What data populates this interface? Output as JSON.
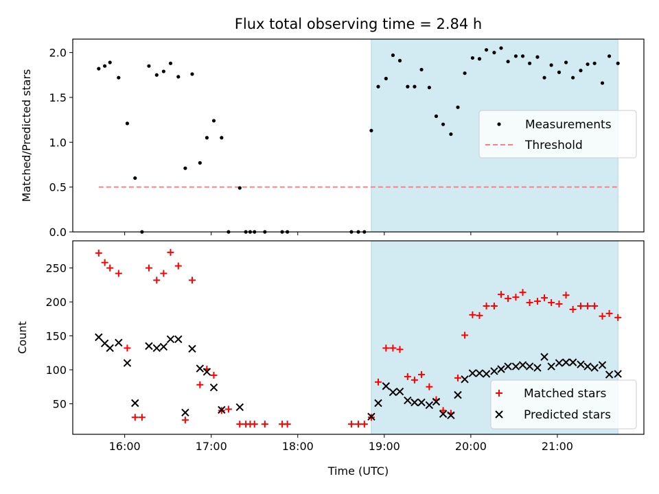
{
  "figure": {
    "title": "Flux total observing time = 2.84 h",
    "xlabel": "Time (UTC)",
    "x_ticks": [
      "16:00",
      "17:00",
      "18:00",
      "19:00",
      "20:00",
      "21:00"
    ],
    "x_tick_hours": [
      16,
      17,
      18,
      19,
      20,
      21
    ],
    "xlim_hours": [
      15.4,
      22.0
    ],
    "shaded_span_hours": [
      18.85,
      21.7
    ],
    "colors": {
      "shade": "#add8e6",
      "measurement": "#000000",
      "threshold": "#ff7f7f",
      "matched": "#ff0000",
      "predicted": "#000000"
    }
  },
  "chart_data": [
    {
      "type": "scatter",
      "ylabel": "Matched/Predicted stars",
      "ylim": [
        0,
        2.15
      ],
      "y_ticks": [
        "0.0",
        "0.5",
        "1.0",
        "1.5",
        "2.0"
      ],
      "y_tick_values": [
        0,
        0.5,
        1.0,
        1.5,
        2.0
      ],
      "legend_position": "center-right",
      "series": [
        {
          "name": "Measurements",
          "x": [
            15.7,
            15.77,
            15.83,
            15.93,
            16.03,
            16.12,
            16.2,
            16.28,
            16.37,
            16.45,
            16.53,
            16.62,
            16.7,
            16.78,
            16.87,
            16.95,
            17.03,
            17.12,
            17.2,
            17.33,
            17.4,
            17.45,
            17.5,
            17.62,
            17.82,
            17.88,
            18.62,
            18.7,
            18.77,
            18.85,
            18.93,
            19.02,
            19.1,
            19.18,
            19.27,
            19.35,
            19.43,
            19.52,
            19.6,
            19.68,
            19.77,
            19.85,
            19.93,
            20.02,
            20.1,
            20.18,
            20.27,
            20.35,
            20.43,
            20.52,
            20.6,
            20.68,
            20.77,
            20.85,
            20.93,
            21.02,
            21.1,
            21.18,
            21.27,
            21.35,
            21.43,
            21.52,
            21.6,
            21.7
          ],
          "y": [
            1.82,
            1.85,
            1.89,
            1.72,
            1.21,
            0.6,
            0.0,
            1.85,
            1.75,
            1.79,
            1.88,
            1.73,
            0.71,
            1.76,
            0.77,
            1.05,
            1.24,
            1.05,
            0.0,
            0.49,
            0.0,
            0.0,
            0.0,
            0.0,
            0.0,
            0.0,
            0.0,
            0.0,
            0.0,
            1.13,
            1.62,
            1.71,
            1.97,
            1.91,
            1.62,
            1.62,
            1.81,
            1.61,
            1.29,
            1.2,
            1.09,
            1.39,
            1.77,
            1.94,
            1.93,
            2.03,
            2.0,
            2.05,
            1.9,
            1.96,
            1.96,
            1.88,
            1.95,
            1.72,
            1.86,
            1.78,
            1.89,
            1.72,
            1.8,
            1.87,
            1.88,
            1.66,
            1.96,
            1.88
          ]
        },
        {
          "name": "Threshold",
          "x": [
            15.7,
            21.7
          ],
          "y": [
            0.5,
            0.5
          ]
        }
      ]
    },
    {
      "type": "scatter",
      "ylabel": "Count",
      "ylim": [
        5,
        290
      ],
      "y_ticks": [
        "50",
        "100",
        "150",
        "200",
        "250"
      ],
      "y_tick_values": [
        50,
        100,
        150,
        200,
        250
      ],
      "legend_position": "lower-right",
      "series": [
        {
          "name": "Matched stars",
          "x": [
            15.7,
            15.77,
            15.83,
            15.93,
            16.03,
            16.12,
            16.2,
            16.28,
            16.37,
            16.45,
            16.53,
            16.62,
            16.7,
            16.78,
            16.87,
            16.95,
            17.03,
            17.12,
            17.2,
            17.33,
            17.4,
            17.45,
            17.5,
            17.62,
            17.82,
            17.88,
            18.62,
            18.7,
            18.77,
            18.85,
            18.93,
            19.02,
            19.1,
            19.18,
            19.27,
            19.35,
            19.43,
            19.52,
            19.6,
            19.68,
            19.77,
            19.85,
            19.93,
            20.02,
            20.1,
            20.18,
            20.27,
            20.35,
            20.43,
            20.52,
            20.6,
            20.68,
            20.77,
            20.85,
            20.93,
            21.02,
            21.1,
            21.18,
            21.27,
            21.35,
            21.43,
            21.52,
            21.6,
            21.7
          ],
          "y": [
            272,
            258,
            250,
            242,
            132,
            30,
            30,
            250,
            232,
            242,
            273,
            253,
            26,
            232,
            78,
            101,
            92,
            40,
            42,
            20,
            20,
            20,
            20,
            20,
            20,
            20,
            20,
            20,
            20,
            30,
            82,
            132,
            132,
            130,
            90,
            85,
            93,
            75,
            56,
            40,
            36,
            88,
            151,
            181,
            180,
            194,
            194,
            211,
            205,
            207,
            214,
            199,
            201,
            206,
            199,
            197,
            210,
            189,
            194,
            194,
            194,
            179,
            183,
            177
          ]
        },
        {
          "name": "Predicted stars",
          "x": [
            15.7,
            15.77,
            15.83,
            15.93,
            16.03,
            16.12,
            16.28,
            16.37,
            16.45,
            16.53,
            16.62,
            16.7,
            16.78,
            16.87,
            16.95,
            17.03,
            17.12,
            17.33,
            18.85,
            18.93,
            19.02,
            19.1,
            19.18,
            19.27,
            19.35,
            19.43,
            19.52,
            19.6,
            19.68,
            19.77,
            19.85,
            19.93,
            20.02,
            20.1,
            20.18,
            20.27,
            20.35,
            20.43,
            20.52,
            20.6,
            20.68,
            20.77,
            20.85,
            20.93,
            21.02,
            21.1,
            21.18,
            21.27,
            21.35,
            21.43,
            21.52,
            21.6,
            21.7
          ],
          "y": [
            148,
            139,
            132,
            140,
            110,
            51,
            135,
            132,
            134,
            145,
            145,
            37,
            131,
            102,
            97,
            74,
            41,
            45,
            31,
            51,
            76,
            67,
            68,
            55,
            52,
            52,
            48,
            53,
            35,
            33,
            63,
            86,
            95,
            95,
            94,
            98,
            101,
            105,
            105,
            107,
            105,
            103,
            119,
            105,
            110,
            111,
            111,
            108,
            105,
            103,
            107,
            93,
            94
          ]
        }
      ]
    }
  ]
}
